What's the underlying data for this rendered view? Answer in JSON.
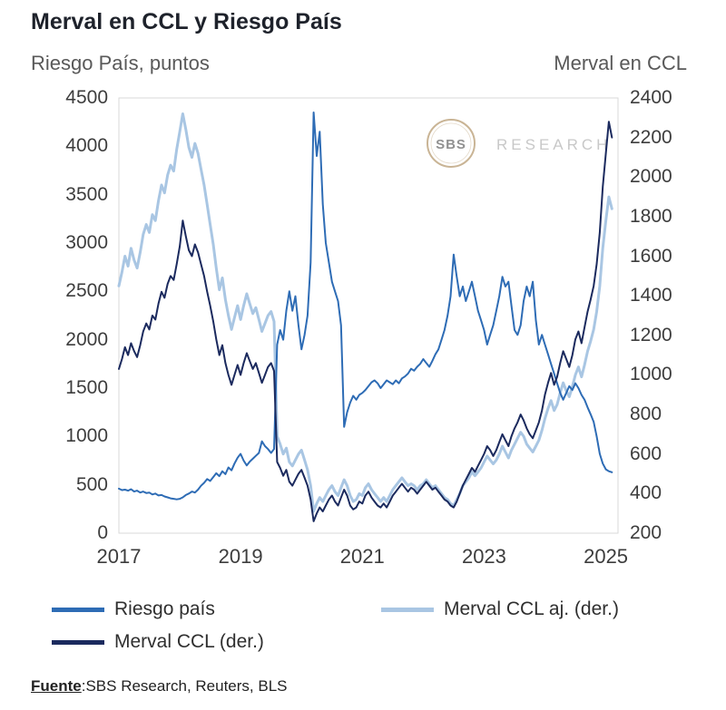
{
  "watermark": {
    "circle_text": "SBS",
    "side_text": "RESEARCH",
    "ring_color": "#c7b190",
    "circle_text_color": "#8c8c8c",
    "side_text_color": "#c6c6c6"
  },
  "footer": {
    "label": "Fuente",
    "text": ":SBS Research, Reuters, BLS"
  },
  "chart_data": {
    "type": "line",
    "title": "Merval en CCL y Riesgo País",
    "grid": false,
    "plot_border_color": "#d9d9d9",
    "legend_position": "bottom",
    "x_axis": {
      "min": 2017,
      "max": 2025.2,
      "ticks": [
        2017,
        2019,
        2021,
        2023,
        2025
      ]
    },
    "left_axis": {
      "label": "Riesgo País, puntos",
      "min": 0,
      "max": 4500,
      "ticks": [
        4500,
        4000,
        3500,
        3000,
        2500,
        2000,
        1500,
        1000,
        500,
        0
      ]
    },
    "right_axis": {
      "label": "Merval en CCL",
      "min": 200,
      "max": 2400,
      "ticks": [
        2400,
        2200,
        2000,
        1800,
        1600,
        1400,
        1200,
        1000,
        800,
        600,
        400,
        200
      ]
    },
    "x_start": 2017.0,
    "x_step": 0.05,
    "legend": [
      {
        "label": "Riesgo país",
        "color": "#2e6cb5"
      },
      {
        "label": "Merval CCL aj. (der.)",
        "color": "#a9c6e3"
      },
      {
        "label": "Merval CCL (der.)",
        "color": "#1b2a5e"
      }
    ],
    "series": [
      {
        "name": "Merval CCL aj. (der.)",
        "axis": "right",
        "color": "#a9c6e3",
        "width": 3,
        "values": [
          1450,
          1520,
          1600,
          1550,
          1640,
          1580,
          1540,
          1620,
          1710,
          1760,
          1720,
          1810,
          1780,
          1880,
          1960,
          1920,
          2010,
          2060,
          2030,
          2140,
          2230,
          2320,
          2240,
          2150,
          2100,
          2170,
          2120,
          2040,
          1960,
          1860,
          1760,
          1660,
          1540,
          1430,
          1490,
          1380,
          1300,
          1230,
          1290,
          1350,
          1280,
          1350,
          1410,
          1360,
          1310,
          1340,
          1280,
          1220,
          1260,
          1300,
          1320,
          1270,
          690,
          650,
          600,
          630,
          560,
          540,
          570,
          600,
          620,
          570,
          520,
          440,
          310,
          350,
          380,
          360,
          390,
          420,
          440,
          410,
          390,
          430,
          470,
          440,
          390,
          360,
          370,
          400,
          390,
          430,
          450,
          420,
          400,
          380,
          360,
          380,
          360,
          390,
          420,
          440,
          460,
          480,
          460,
          440,
          450,
          440,
          420,
          440,
          450,
          470,
          450,
          430,
          440,
          420,
          400,
          380,
          370,
          350,
          340,
          370,
          400,
          440,
          460,
          480,
          510,
          490,
          510,
          530,
          560,
          590,
          570,
          550,
          570,
          600,
          640,
          610,
          580,
          620,
          650,
          680,
          710,
          690,
          650,
          630,
          610,
          640,
          670,
          720,
          780,
          830,
          870,
          820,
          850,
          910,
          960,
          920,
          890,
          940,
          1000,
          1040,
          990,
          1050,
          1120,
          1170,
          1230,
          1320,
          1450,
          1640,
          1780,
          1900,
          1840
        ]
      },
      {
        "name": "Riesgo país",
        "axis": "left",
        "color": "#2e6cb5",
        "width": 2,
        "values": [
          460,
          445,
          450,
          440,
          455,
          430,
          440,
          420,
          430,
          415,
          420,
          400,
          410,
          390,
          395,
          380,
          370,
          360,
          355,
          350,
          355,
          370,
          395,
          410,
          430,
          420,
          450,
          490,
          520,
          560,
          540,
          580,
          620,
          590,
          640,
          610,
          680,
          650,
          720,
          780,
          820,
          750,
          700,
          740,
          770,
          800,
          830,
          950,
          900,
          870,
          830,
          870,
          1950,
          2100,
          2000,
          2300,
          2500,
          2300,
          2450,
          2150,
          1900,
          2050,
          2250,
          2800,
          4350,
          3900,
          4150,
          3400,
          3000,
          2800,
          2600,
          2500,
          2400,
          2150,
          1100,
          1250,
          1350,
          1420,
          1380,
          1430,
          1450,
          1480,
          1520,
          1560,
          1580,
          1550,
          1500,
          1540,
          1580,
          1560,
          1540,
          1580,
          1550,
          1600,
          1620,
          1650,
          1700,
          1680,
          1720,
          1750,
          1800,
          1760,
          1720,
          1780,
          1850,
          1900,
          2000,
          2100,
          2250,
          2450,
          2880,
          2650,
          2450,
          2550,
          2400,
          2500,
          2600,
          2450,
          2300,
          2200,
          2100,
          1950,
          2050,
          2150,
          2300,
          2450,
          2650,
          2550,
          2600,
          2350,
          2100,
          2050,
          2150,
          2400,
          2550,
          2450,
          2600,
          2200,
          1950,
          2050,
          1950,
          1850,
          1750,
          1650,
          1550,
          1450,
          1380,
          1450,
          1520,
          1480,
          1550,
          1500,
          1430,
          1380,
          1300,
          1230,
          1150,
          1000,
          820,
          720,
          660,
          640,
          630
        ]
      },
      {
        "name": "Merval CCL (der.)",
        "axis": "right",
        "color": "#1b2a5e",
        "width": 2,
        "values": [
          1030,
          1080,
          1140,
          1100,
          1160,
          1120,
          1090,
          1150,
          1220,
          1260,
          1230,
          1300,
          1280,
          1360,
          1420,
          1390,
          1460,
          1500,
          1480,
          1560,
          1650,
          1780,
          1700,
          1630,
          1600,
          1660,
          1620,
          1560,
          1500,
          1420,
          1350,
          1270,
          1180,
          1100,
          1150,
          1060,
          1000,
          950,
          1000,
          1050,
          1000,
          1060,
          1110,
          1070,
          1030,
          1060,
          1010,
          960,
          1000,
          1040,
          1060,
          1020,
          560,
          530,
          490,
          520,
          460,
          440,
          470,
          500,
          520,
          480,
          440,
          370,
          260,
          300,
          330,
          310,
          340,
          370,
          390,
          360,
          340,
          380,
          420,
          390,
          340,
          320,
          330,
          360,
          350,
          390,
          410,
          380,
          360,
          340,
          330,
          350,
          330,
          360,
          390,
          410,
          430,
          450,
          430,
          410,
          430,
          420,
          400,
          420,
          440,
          460,
          440,
          420,
          430,
          410,
          390,
          370,
          360,
          340,
          330,
          360,
          400,
          440,
          470,
          500,
          530,
          510,
          540,
          570,
          600,
          640,
          620,
          590,
          620,
          660,
          700,
          670,
          640,
          690,
          730,
          760,
          800,
          770,
          730,
          700,
          680,
          720,
          760,
          820,
          900,
          960,
          1010,
          950,
          990,
          1060,
          1120,
          1080,
          1040,
          1100,
          1180,
          1220,
          1160,
          1240,
          1320,
          1380,
          1450,
          1560,
          1720,
          1950,
          2120,
          2280,
          2200
        ]
      }
    ],
    "source": "Fuente:SBS Research, Reuters, BLS"
  }
}
